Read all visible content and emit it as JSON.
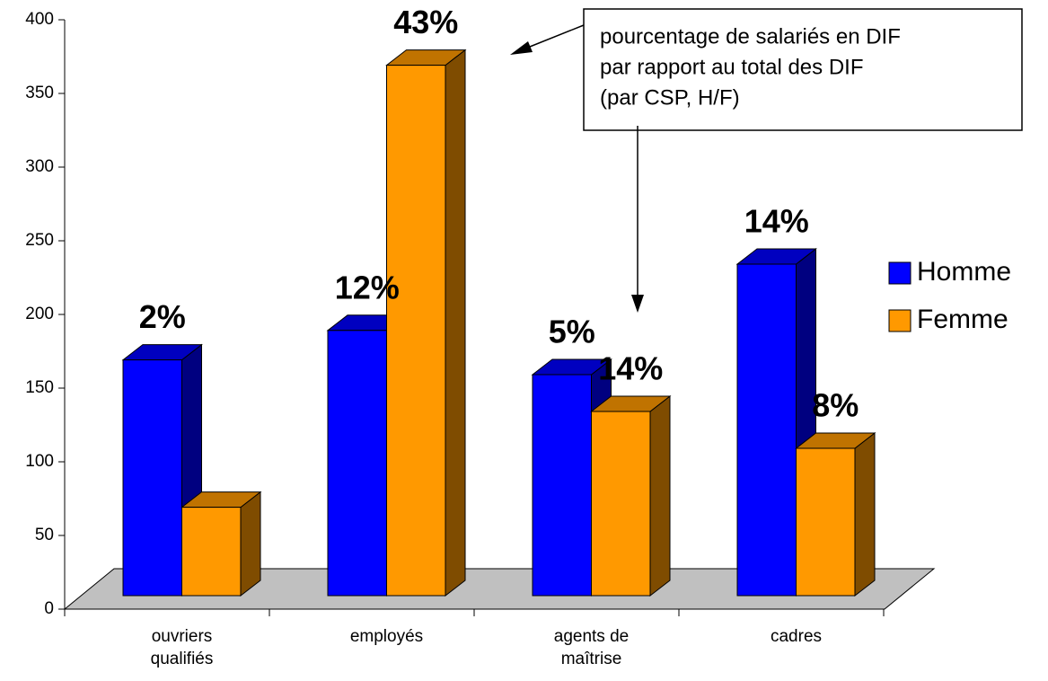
{
  "chart_data": {
    "type": "bar3d",
    "categories": [
      "ouvriers qualifiés",
      "employés",
      "agents de maîtrise",
      "cadres"
    ],
    "series": [
      {
        "name": "Homme",
        "color": "#0000ff",
        "side_color": "#000080",
        "top_color": "#0000c0",
        "values": [
          160,
          180,
          150,
          225
        ],
        "labels": [
          "2%",
          "12%",
          "5%",
          "14%"
        ]
      },
      {
        "name": "Femme",
        "color": "#ff9900",
        "side_color": "#7f4c00",
        "top_color": "#c07300",
        "values": [
          60,
          360,
          125,
          100
        ],
        "labels": [
          "",
          "43%",
          "14%",
          "8%"
        ]
      }
    ],
    "ylim": [
      0,
      400
    ],
    "yticks": [
      0,
      50,
      100,
      150,
      200,
      250,
      300,
      350,
      400
    ],
    "annotation": [
      "pourcentage de salariés en DIF",
      "par rapport au total des DIF",
      "(par CSP, H/F)"
    ],
    "legend": "right"
  }
}
